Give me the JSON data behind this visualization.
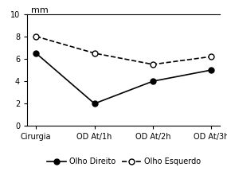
{
  "x_labels": [
    "Cirurgia",
    "OD At/1h",
    "OD At/2h",
    "OD At/3h"
  ],
  "x_positions": [
    0,
    1,
    2,
    3
  ],
  "olho_direito": [
    6.5,
    2.0,
    4.0,
    5.0
  ],
  "olho_esquerdo": [
    8.0,
    6.5,
    5.5,
    6.2
  ],
  "ylabel": "mm",
  "ylim": [
    0,
    10
  ],
  "yticks": [
    0,
    2,
    4,
    6,
    8,
    10
  ],
  "legend_direito": "Olho Direito",
  "legend_esquerdo": "Olho Esquerdo",
  "line_color": "black",
  "bg_color": "white",
  "fig_width": 2.85,
  "fig_height": 2.2,
  "dpi": 100
}
